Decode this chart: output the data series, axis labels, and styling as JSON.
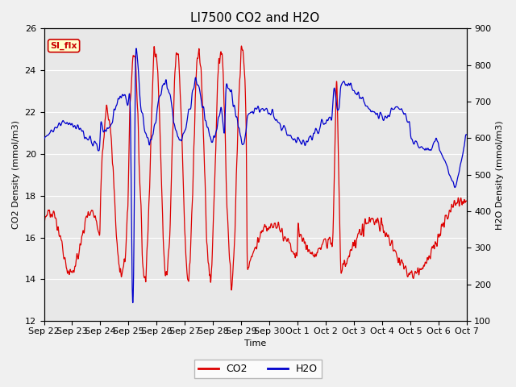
{
  "title": "LI7500 CO2 and H2O",
  "ylabel_left": "CO2 Density (mmol/m3)",
  "ylabel_right": "H2O Density (mmol/m3)",
  "xlabel": "Time",
  "ylim_left": [
    12,
    26
  ],
  "ylim_right": [
    100,
    900
  ],
  "yticks_left": [
    12,
    14,
    16,
    18,
    20,
    22,
    24,
    26
  ],
  "yticks_right": [
    100,
    200,
    300,
    400,
    500,
    600,
    700,
    800,
    900
  ],
  "xtick_labels": [
    "Sep 22",
    "Sep 23",
    "Sep 24",
    "Sep 25",
    "Sep 26",
    "Sep 27",
    "Sep 28",
    "Sep 29",
    "Sep 30",
    "Oct 1",
    "Oct 2",
    "Oct 3",
    "Oct 4",
    "Oct 5",
    "Oct 6",
    "Oct 7"
  ],
  "legend_labels": [
    "CO2",
    "H2O"
  ],
  "co2_color": "#dd0000",
  "h2o_color": "#0000cc",
  "annotation_text": "SI_flx",
  "annotation_bg": "#ffffcc",
  "annotation_fg": "#cc0000",
  "annotation_border": "#cc0000",
  "grid_color": "#ffffff",
  "axes_bg": "#e8e8e8",
  "fig_bg": "#f0f0f0",
  "title_fontsize": 11,
  "label_fontsize": 8,
  "tick_fontsize": 8,
  "legend_fontsize": 9
}
